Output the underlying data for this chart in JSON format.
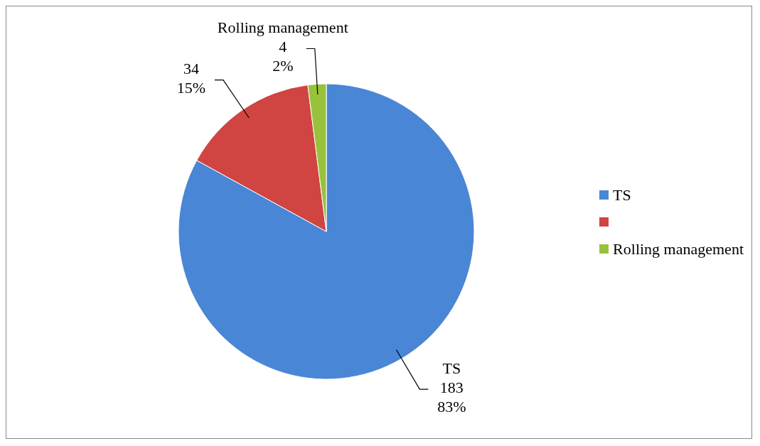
{
  "chart_data": {
    "type": "pie",
    "categories": [
      "TS",
      null,
      "Rolling management"
    ],
    "values": [
      83,
      15,
      2
    ],
    "colors": [
      "#4a86d6",
      "#d04442",
      "#98c23c"
    ],
    "value_labels": [
      "183\n83%",
      "34\n15%",
      "4\n2%"
    ],
    "legend": "right"
  }
}
